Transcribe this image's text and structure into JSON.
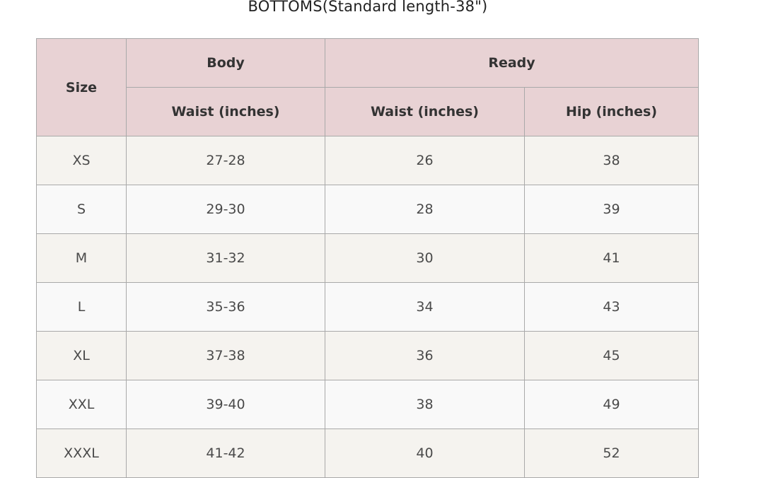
{
  "title": "BOTTOMS(Standard length-38\")",
  "header": {
    "size": "Size",
    "body": "Body",
    "ready": "Ready",
    "body_waist": "Waist (inches)",
    "ready_waist": "Waist (inches)",
    "ready_hip": "Hip (inches)"
  },
  "rows": [
    {
      "size": "XS",
      "body_waist": "27-28",
      "ready_waist": "26",
      "ready_hip": "38"
    },
    {
      "size": "S",
      "body_waist": "29-30",
      "ready_waist": "28",
      "ready_hip": "39"
    },
    {
      "size": "M",
      "body_waist": "31-32",
      "ready_waist": "30",
      "ready_hip": "41"
    },
    {
      "size": "L",
      "body_waist": "35-36",
      "ready_waist": "34",
      "ready_hip": "43"
    },
    {
      "size": "XL",
      "body_waist": "37-38",
      "ready_waist": "36",
      "ready_hip": "45"
    },
    {
      "size": "XXL",
      "body_waist": "39-40",
      "ready_waist": "38",
      "ready_hip": "49"
    },
    {
      "size": "XXXL",
      "body_waist": "41-42",
      "ready_waist": "40",
      "ready_hip": "52"
    }
  ],
  "colors": {
    "header_bg": "#e8d2d4",
    "row_odd": "#f5f3ef",
    "row_even": "#f9f9f9"
  }
}
